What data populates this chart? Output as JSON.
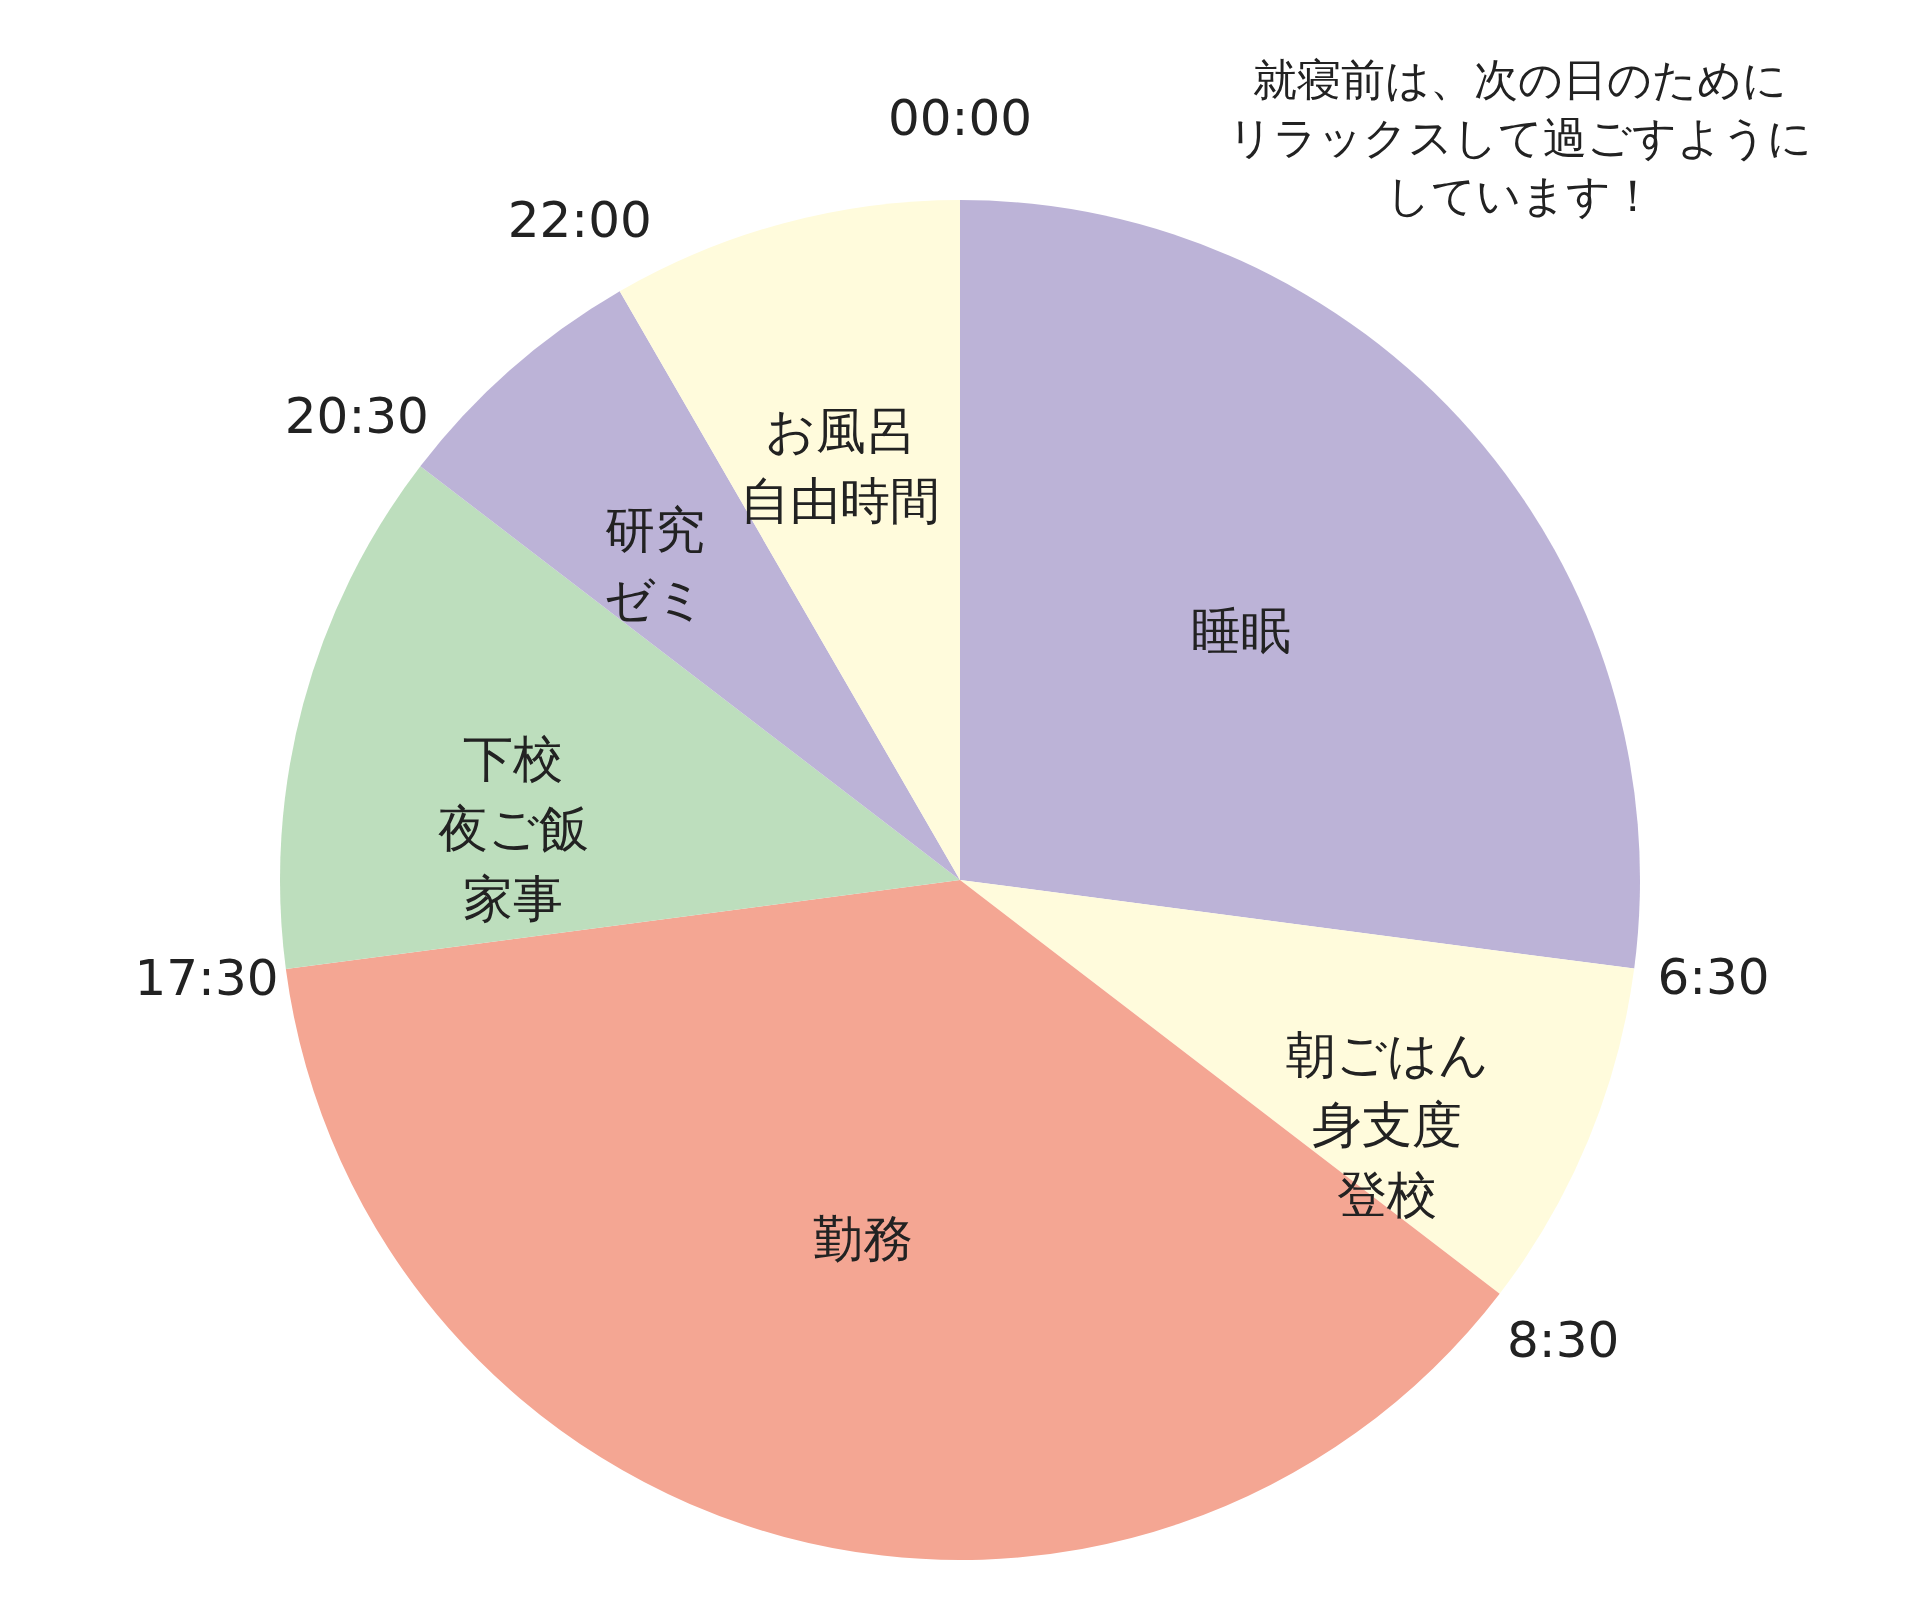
{
  "chart_data": {
    "type": "pie",
    "categories": [
      "睡眠",
      "朝ごはん身支度登校",
      "勤務",
      "下校夜ご飯家事",
      "研究ゼミ",
      "お風呂自由時間"
    ],
    "values": [
      27.08,
      8.33,
      37.5,
      12.5,
      6.25,
      8.34
    ],
    "colors": [
      "#bcb3d7",
      "#fffbdc",
      "#f4a693",
      "#bddebd",
      "#bcb3d7",
      "#fffbdc"
    ],
    "annotations": [
      "00:00",
      "6:30",
      "8:30",
      "17:30",
      "20:30",
      "22:00",
      "就寝前は、次の日のためにリラックスして過ごすようにしています！"
    ]
  }
}
